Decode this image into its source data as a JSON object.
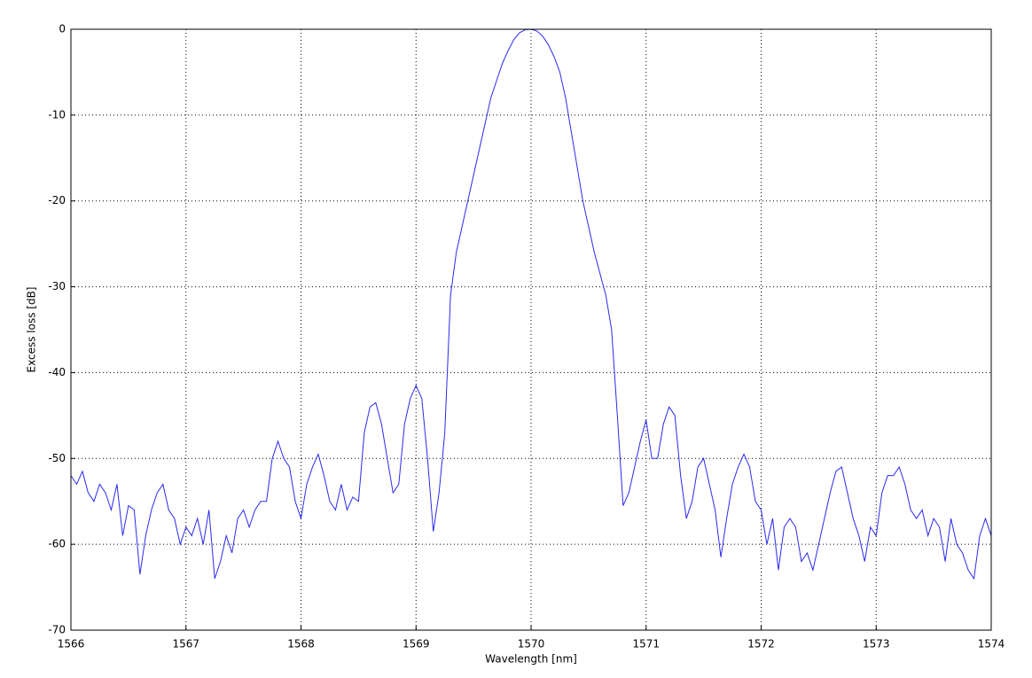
{
  "chart_data": {
    "type": "line",
    "x_label": "Wavelength [nm]",
    "y_label": "Excess loss [dB]",
    "xlim": [
      1566,
      1574
    ],
    "xticks": [
      1566,
      1567,
      1568,
      1569,
      1570,
      1571,
      1572,
      1573,
      1574
    ],
    "ylim": [
      -70,
      0
    ],
    "yticks": [
      -70,
      -60,
      -50,
      -40,
      -30,
      -20,
      -10,
      0
    ],
    "grid": true,
    "x": [
      1566.0,
      1566.05,
      1566.1,
      1566.15,
      1566.2,
      1566.25,
      1566.3,
      1566.35,
      1566.4,
      1566.45,
      1566.5,
      1566.55,
      1566.6,
      1566.65,
      1566.7,
      1566.75,
      1566.8,
      1566.85,
      1566.9,
      1566.95,
      1567.0,
      1567.05,
      1567.1,
      1567.15,
      1567.2,
      1567.25,
      1567.3,
      1567.35,
      1567.4,
      1567.45,
      1567.5,
      1567.55,
      1567.6,
      1567.65,
      1567.7,
      1567.75,
      1567.8,
      1567.85,
      1567.9,
      1567.95,
      1568.0,
      1568.05,
      1568.1,
      1568.15,
      1568.2,
      1568.25,
      1568.3,
      1568.35,
      1568.4,
      1568.45,
      1568.5,
      1568.55,
      1568.6,
      1568.65,
      1568.7,
      1568.75,
      1568.8,
      1568.85,
      1568.9,
      1568.95,
      1569.0,
      1569.05,
      1569.1,
      1569.15,
      1569.2,
      1569.25,
      1569.3,
      1569.35,
      1569.4,
      1569.45,
      1569.5,
      1569.55,
      1569.6,
      1569.65,
      1569.7,
      1569.75,
      1569.8,
      1569.85,
      1569.9,
      1569.95,
      1570.0,
      1570.05,
      1570.1,
      1570.15,
      1570.2,
      1570.25,
      1570.3,
      1570.35,
      1570.4,
      1570.45,
      1570.5,
      1570.55,
      1570.6,
      1570.65,
      1570.7,
      1570.75,
      1570.8,
      1570.85,
      1570.9,
      1570.95,
      1571.0,
      1571.05,
      1571.1,
      1571.15,
      1571.2,
      1571.25,
      1571.3,
      1571.35,
      1571.4,
      1571.45,
      1571.5,
      1571.55,
      1571.6,
      1571.65,
      1571.7,
      1571.75,
      1571.8,
      1571.85,
      1571.9,
      1571.95,
      1572.0,
      1572.05,
      1572.1,
      1572.15,
      1572.2,
      1572.25,
      1572.3,
      1572.35,
      1572.4,
      1572.45,
      1572.5,
      1572.55,
      1572.6,
      1572.65,
      1572.7,
      1572.75,
      1572.8,
      1572.85,
      1572.9,
      1572.95,
      1573.0,
      1573.05,
      1573.1,
      1573.15,
      1573.2,
      1573.25,
      1573.3,
      1573.35,
      1573.4,
      1573.45,
      1573.5,
      1573.55,
      1573.6,
      1573.65,
      1573.7,
      1573.75,
      1573.8,
      1573.85,
      1573.9,
      1573.95,
      1574.0
    ],
    "series": [
      {
        "color": "#2a2af0",
        "values": [
          -52,
          -53,
          -51.5,
          -54,
          -55,
          -53,
          -54,
          -56,
          -53,
          -59,
          -55.5,
          -56,
          -63.5,
          -59,
          -56,
          -54,
          -53,
          -56,
          -57,
          -60,
          -58,
          -59,
          -57,
          -60,
          -56,
          -64,
          -62,
          -59,
          -61,
          -57,
          -56,
          -58,
          -56,
          -55,
          -55,
          -50,
          -48,
          -50,
          -51,
          -55,
          -57,
          -53,
          -51,
          -49.5,
          -52,
          -55,
          -56,
          -53,
          -56,
          -54.5,
          -55,
          -47,
          -44,
          -43.5,
          -46,
          -50,
          -54,
          -53,
          -46,
          -43,
          -41.5,
          -43,
          -50,
          -58.5,
          -54,
          -47,
          -31,
          -26,
          -23,
          -20,
          -17,
          -14,
          -11,
          -8,
          -6,
          -4,
          -2.5,
          -1.2,
          -0.4,
          -0.05,
          0,
          -0.2,
          -0.8,
          -1.8,
          -3.2,
          -5,
          -8,
          -12,
          -16,
          -20,
          -23,
          -26,
          -28.5,
          -31,
          -35,
          -45,
          -55.5,
          -54,
          -51,
          -48,
          -45.5,
          -50,
          -50,
          -46,
          -44,
          -45,
          -52,
          -57,
          -55,
          -51,
          -50,
          -53,
          -56,
          -61.5,
          -57,
          -53,
          -51,
          -49.5,
          -51,
          -55,
          -56,
          -60,
          -57,
          -63,
          -58,
          -57,
          -58,
          -62,
          -61,
          -63,
          -60,
          -57,
          -54,
          -51.5,
          -51,
          -54,
          -57,
          -59,
          -62,
          -58,
          -59,
          -54,
          -52,
          -52,
          -51,
          -53,
          -56,
          -57,
          -56,
          -59,
          -57,
          -58,
          -62,
          -57,
          -60,
          -61,
          -63,
          -64,
          -59,
          -57,
          -59
        ]
      }
    ]
  }
}
